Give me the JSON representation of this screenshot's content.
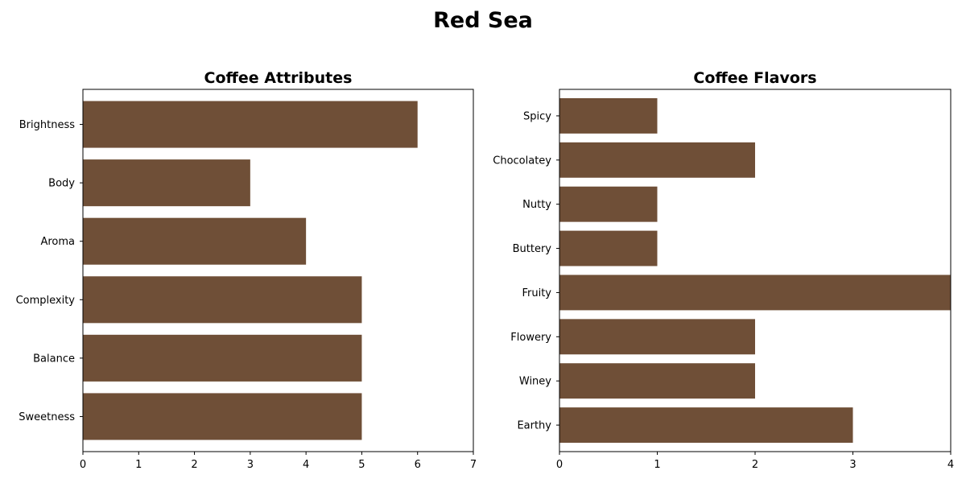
{
  "figure": {
    "title": "Red Sea",
    "bar_color": "#6f4f37"
  },
  "chart_data": [
    {
      "type": "bar",
      "orientation": "horizontal",
      "title": "Coffee Attributes",
      "xlabel": "",
      "ylabel": "",
      "categories": [
        "Brightness",
        "Body",
        "Aroma",
        "Complexity",
        "Balance",
        "Sweetness"
      ],
      "values": [
        6,
        3,
        4,
        5,
        5,
        5
      ],
      "xlim": [
        0,
        7
      ],
      "xticks": [
        0,
        1,
        2,
        3,
        4,
        5,
        6,
        7
      ],
      "grid": false
    },
    {
      "type": "bar",
      "orientation": "horizontal",
      "title": "Coffee Flavors",
      "xlabel": "",
      "ylabel": "",
      "categories": [
        "Spicy",
        "Chocolatey",
        "Nutty",
        "Buttery",
        "Fruity",
        "Flowery",
        "Winey",
        "Earthy"
      ],
      "values": [
        1,
        2,
        1,
        1,
        4,
        2,
        2,
        3
      ],
      "xlim": [
        0,
        4
      ],
      "xticks": [
        0,
        1,
        2,
        3,
        4
      ],
      "grid": false
    }
  ]
}
